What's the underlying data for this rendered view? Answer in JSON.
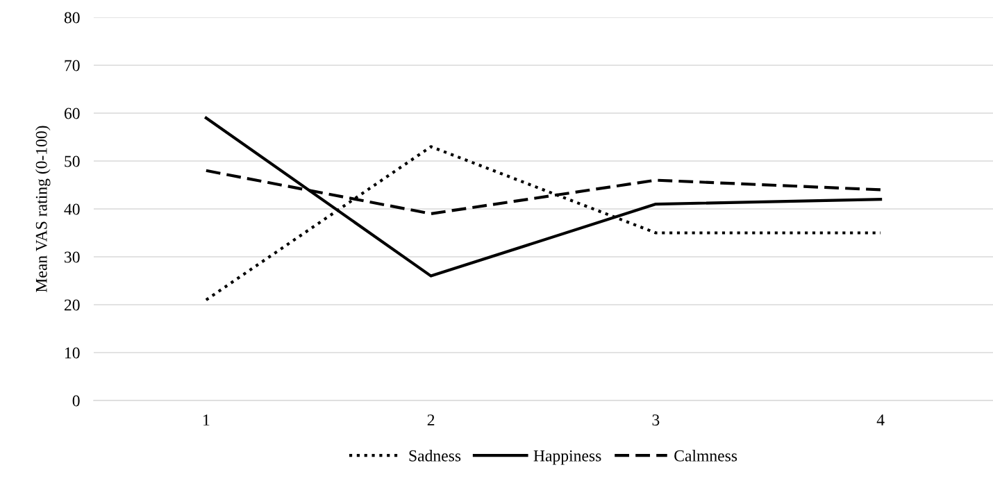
{
  "chart_data": {
    "type": "line",
    "ylabel": "Mean VAS rating (0-100)",
    "categories": [
      "1",
      "2",
      "3",
      "4"
    ],
    "series": [
      {
        "name": "Sadness",
        "color": "#000000",
        "line_style": "dotted",
        "values": [
          21,
          53,
          35,
          35
        ]
      },
      {
        "name": "Happiness",
        "color": "#000000",
        "line_style": "solid",
        "values": [
          59,
          26,
          41,
          42
        ]
      },
      {
        "name": "Calmness",
        "color": "#000000",
        "line_style": "dashed",
        "values": [
          48,
          39,
          46,
          44
        ]
      }
    ],
    "ylim": [
      0,
      80
    ],
    "yticks": [
      0,
      10,
      20,
      30,
      40,
      50,
      60,
      70,
      80
    ],
    "grid": "y",
    "legend": "bottom",
    "marker": "none"
  }
}
